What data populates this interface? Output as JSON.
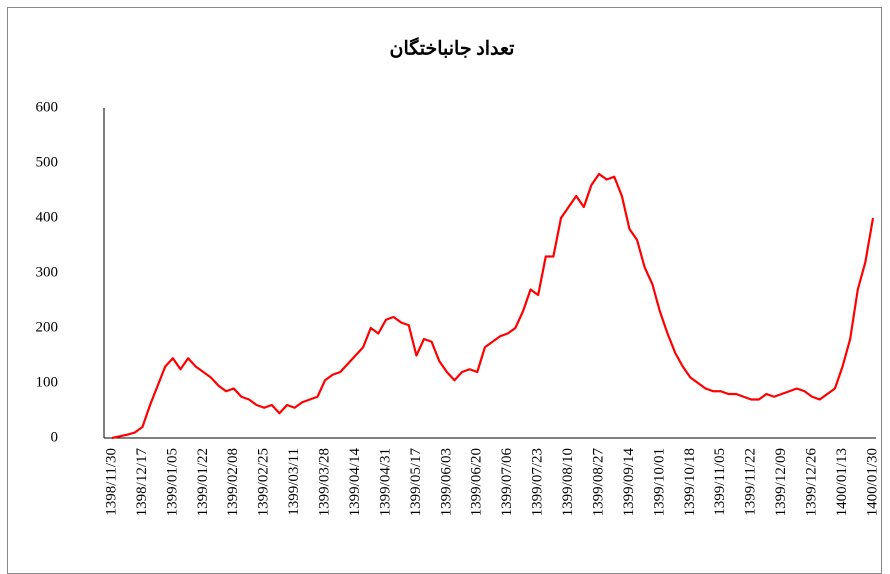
{
  "chart_data": {
    "type": "line",
    "title": "تعداد جانباختگان",
    "categories": [
      "1398/11/30",
      null,
      null,
      null,
      "1398/12/17",
      null,
      null,
      null,
      "1399/01/05",
      null,
      null,
      null,
      "1399/01/22",
      null,
      null,
      null,
      "1399/02/08",
      null,
      null,
      null,
      "1399/02/25",
      null,
      null,
      null,
      "1399/03/11",
      null,
      null,
      null,
      "1399/03/28",
      null,
      null,
      null,
      "1399/04/14",
      null,
      null,
      null,
      "1399/04/31",
      null,
      null,
      null,
      "1399/05/17",
      null,
      null,
      null,
      "1399/06/03",
      null,
      null,
      null,
      "1399/06/20",
      null,
      null,
      null,
      "1399/07/06",
      null,
      null,
      null,
      "1399/07/23",
      null,
      null,
      null,
      "1399/08/10",
      null,
      null,
      null,
      "1399/08/27",
      null,
      null,
      null,
      "1399/09/14",
      null,
      null,
      null,
      "1399/10/01",
      null,
      null,
      null,
      "1399/10/18",
      null,
      null,
      null,
      "1399/11/05",
      null,
      null,
      null,
      "1399/11/22",
      null,
      null,
      null,
      "1399/12/09",
      null,
      null,
      null,
      "1399/12/26",
      null,
      null,
      null,
      "1400/01/13",
      null,
      null,
      null,
      "1400/01/30"
    ],
    "series": [
      {
        "name": "تعداد جانباختگان",
        "color": "#ff0000",
        "values": [
          0,
          3,
          6,
          10,
          20,
          60,
          95,
          130,
          145,
          125,
          145,
          130,
          120,
          110,
          95,
          85,
          90,
          75,
          70,
          60,
          55,
          60,
          45,
          60,
          55,
          65,
          70,
          75,
          105,
          115,
          120,
          135,
          150,
          165,
          200,
          190,
          215,
          220,
          210,
          205,
          150,
          180,
          175,
          140,
          120,
          105,
          120,
          125,
          120,
          165,
          175,
          185,
          190,
          200,
          230,
          270,
          260,
          330,
          330,
          400,
          420,
          440,
          420,
          460,
          480,
          470,
          475,
          440,
          380,
          360,
          310,
          280,
          230,
          190,
          155,
          130,
          110,
          100,
          90,
          85,
          85,
          80,
          80,
          75,
          70,
          70,
          80,
          75,
          80,
          85,
          90,
          85,
          75,
          70,
          80,
          90,
          130,
          180,
          270,
          320,
          400
        ]
      }
    ],
    "ylim": [
      0,
      600
    ],
    "yticks": [
      0,
      100,
      200,
      300,
      400,
      500,
      600
    ],
    "grid": false
  }
}
